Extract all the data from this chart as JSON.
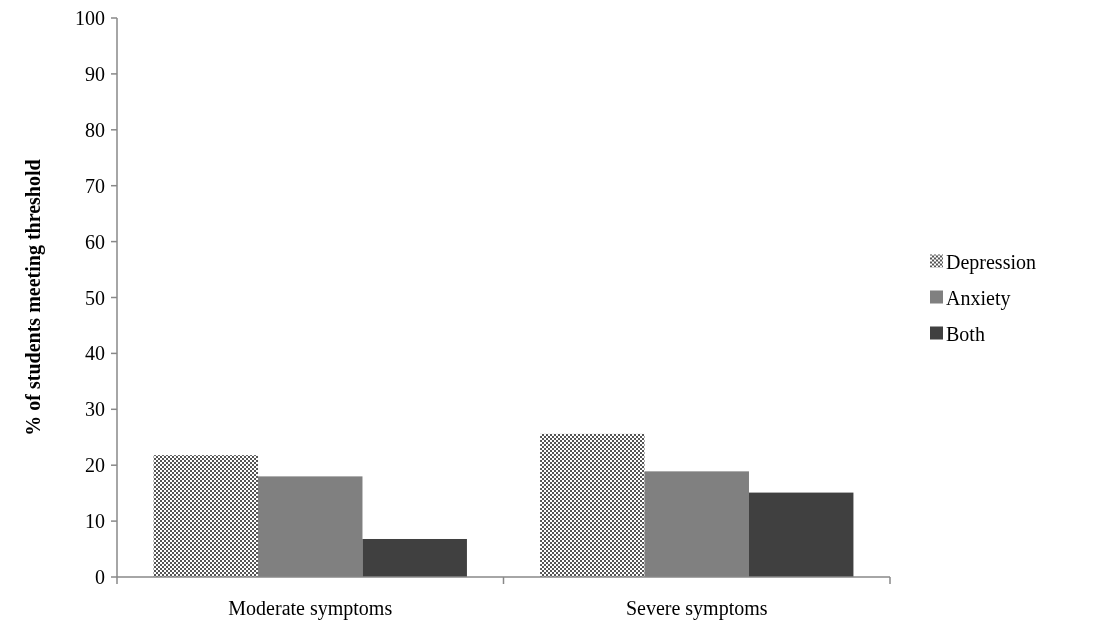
{
  "chart_data": {
    "type": "bar",
    "ylabel": "% of students meeting threshold",
    "categories": [
      "Moderate symptoms",
      "Severe symptoms"
    ],
    "series": [
      {
        "name": "Depression",
        "color": "#555555",
        "values": [
          21.8,
          25.6
        ]
      },
      {
        "name": "Anxiety",
        "color": "#808080",
        "values": [
          18.0,
          18.9
        ]
      },
      {
        "name": "Both",
        "color": "#404040",
        "values": [
          6.8,
          15.1
        ]
      }
    ],
    "ylim": [
      0,
      100
    ],
    "yticks": [
      0,
      10,
      20,
      30,
      40,
      50,
      60,
      70,
      80,
      90,
      100
    ],
    "grid": false,
    "legend": "right"
  }
}
